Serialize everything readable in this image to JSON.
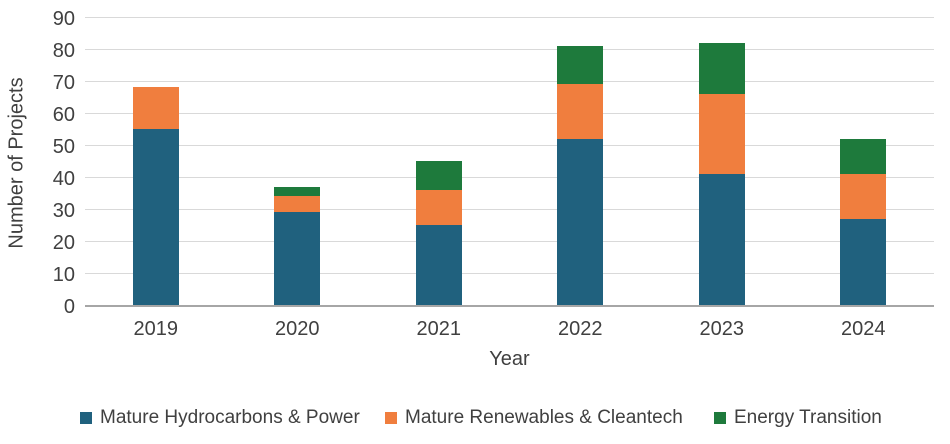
{
  "chart_data": {
    "type": "bar",
    "stacked": true,
    "title": "",
    "categories": [
      "2019",
      "2020",
      "2021",
      "2022",
      "2023",
      "2024"
    ],
    "series": [
      {
        "name": "Mature Hydrocarbons & Power",
        "color": "#20617E",
        "values": [
          55,
          29,
          25,
          52,
          41,
          27
        ]
      },
      {
        "name": "Mature Renewables & Cleantech",
        "color": "#F07E3E",
        "values": [
          13,
          5,
          11,
          17,
          25,
          14
        ]
      },
      {
        "name": "Energy Transition",
        "color": "#1E7A3C",
        "values": [
          0,
          3,
          9,
          12,
          16,
          11
        ]
      }
    ],
    "stack_totals": [
      68,
      37,
      45,
      81,
      82,
      52
    ],
    "xlabel": "Year",
    "ylabel": "Number of Projects",
    "ylim": [
      0,
      90
    ],
    "yticks": [
      0,
      10,
      20,
      30,
      40,
      50,
      60,
      70,
      80,
      90
    ],
    "grid": true,
    "legend_position": "bottom",
    "styles": {
      "text_color": "#404040",
      "gridline_color": "#D9D9D9",
      "axis_line_color": "#A6A6A6",
      "background": "#FFFFFF"
    }
  }
}
